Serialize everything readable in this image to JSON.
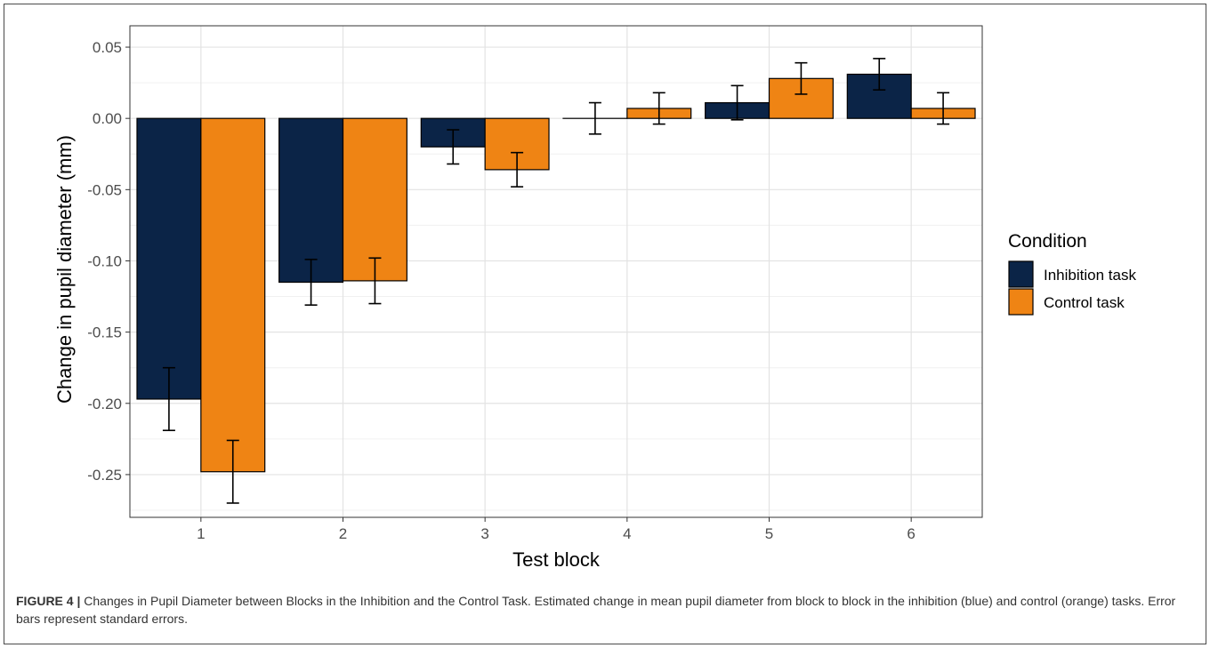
{
  "chart_data": {
    "type": "bar",
    "title": "",
    "xlabel": "Test block",
    "ylabel": "Change in pupil diameter (mm)",
    "categories": [
      "1",
      "2",
      "3",
      "4",
      "5",
      "6"
    ],
    "ylim": [
      -0.28,
      0.065
    ],
    "yticks": [
      0.05,
      0.0,
      -0.05,
      -0.1,
      -0.15,
      -0.2,
      -0.25
    ],
    "ytick_labels": [
      "0.05",
      "0.00",
      "-0.05",
      "-0.10",
      "-0.15",
      "-0.20",
      "-0.25"
    ],
    "grid": true,
    "error_bars": "standard error",
    "legend": {
      "title": "Condition",
      "position": "right"
    },
    "series": [
      {
        "name": "Inhibition task",
        "color": "#0b2447",
        "values": [
          -0.197,
          -0.115,
          -0.02,
          0.0,
          0.011,
          0.031
        ],
        "errors": [
          0.022,
          0.016,
          0.012,
          0.011,
          0.012,
          0.011
        ]
      },
      {
        "name": "Control task",
        "color": "#ef8414",
        "values": [
          -0.248,
          -0.114,
          -0.036,
          0.007,
          0.028,
          0.007
        ],
        "errors": [
          0.022,
          0.016,
          0.012,
          0.011,
          0.011,
          0.011
        ]
      }
    ]
  },
  "caption": {
    "label": "FIGURE 4 |",
    "text": "Changes in Pupil Diameter between Blocks in the Inhibition and the Control Task. Estimated change in mean pupil diameter from block to block in the inhibition (blue) and control (orange) tasks. Error bars represent standard errors."
  }
}
